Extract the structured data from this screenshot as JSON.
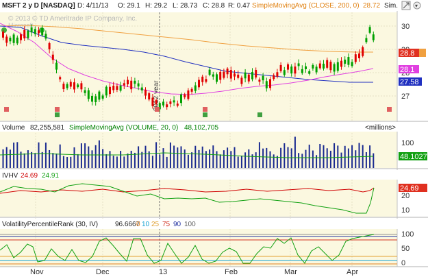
{
  "header": {
    "title": "MSFT 2 y D [NASDAQ]",
    "date": "D: 4/11/13",
    "open": "O: 29.1",
    "high": "H: 29.2",
    "low": "L: 28.73",
    "close": "C: 28.8",
    "rate": "R: 0.47",
    "study": "SimpleMovingAvg (CLOSE, 200, 0)",
    "study_value": "28.72",
    "sim_label": "Sim."
  },
  "watermark": "© 2013 © TD Ameritrade IP Company, Inc.",
  "watermark_name": "Microsoft",
  "year_marker": "2012 year",
  "price_axis": {
    "ticks": [
      "30",
      "29",
      "28",
      "27"
    ],
    "price_badge": "28.8",
    "ma_badge_1": "28.1",
    "ma_badge_2": "27.58"
  },
  "volume_panel": {
    "label": "Volume",
    "value": "82,255,581",
    "study": "SimpleMovingAvg (VOLUME, 20, 0)",
    "study_value": "48,102,705",
    "units": "<millions>",
    "ticks": [
      "100",
      "50"
    ],
    "badge": "48.1027"
  },
  "ivhv_panel": {
    "label": "IVHV",
    "iv_value": "24.69",
    "hv_value": "24.91",
    "ticks": [
      "20",
      "10"
    ],
    "badge": "24.69"
  },
  "vpr_panel": {
    "label": "VolatilityPercentileRank (30, IV)",
    "value": "96.6667",
    "levels": [
      "0",
      "10",
      "25",
      "75",
      "90",
      "100"
    ],
    "ticks": [
      "100",
      "50",
      "0"
    ]
  },
  "x_axis": [
    "Nov",
    "Dec",
    "13",
    "Feb",
    "Mar",
    "Apr"
  ],
  "colors": {
    "up_candle": "#00a000",
    "down_candle": "#e00000",
    "sma200": "#f0a040",
    "ma_blue": "#2030c0",
    "ma_magenta": "#e040e0",
    "volume": "#1a2a90",
    "panel_bg": "#fbf8e0",
    "iv": "#d00000",
    "hv": "#10a010"
  }
}
